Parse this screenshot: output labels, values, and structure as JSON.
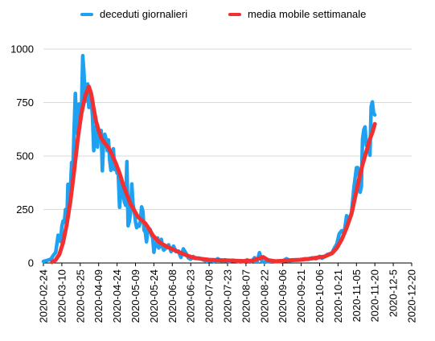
{
  "colors": {
    "daily": "#1ea1f1",
    "mavg": "#f23030",
    "grid": "#d9d9d9",
    "axis": "#000000"
  },
  "chart_data": {
    "type": "line",
    "legend_position": "top",
    "grid": true,
    "xlabel": "",
    "ylabel": "",
    "ylim": [
      0,
      1000
    ],
    "yticks": [
      0,
      250,
      500,
      750,
      1000
    ],
    "x_range": [
      "2020-02-24",
      "2020-12-20"
    ],
    "xticks": [
      "2020-02-24",
      "2020-03-10",
      "2020-03-25",
      "2020-04-09",
      "2020-04-24",
      "2020-05-09",
      "2020-05-24",
      "2020-06-08",
      "2020-06-23",
      "2020-07-08",
      "2020-07-23",
      "2020-08-07",
      "2020-08-22",
      "2020-09-06",
      "2020-09-21",
      "2020-10-06",
      "2020-10-21",
      "2020-11-05",
      "2020-11-20",
      "2020-12-5",
      "2020-12-20"
    ],
    "series": [
      {
        "name": "deceduti giornalieri",
        "points": [
          [
            "2020-02-24",
            7
          ],
          [
            "2020-02-27",
            12
          ],
          [
            "2020-03-01",
            18
          ],
          [
            "2020-03-03",
            35
          ],
          [
            "2020-03-05",
            50
          ],
          [
            "2020-03-07",
            130
          ],
          [
            "2020-03-09",
            100
          ],
          [
            "2020-03-10",
            170
          ],
          [
            "2020-03-11",
            196
          ],
          [
            "2020-03-12",
            190
          ],
          [
            "2020-03-13",
            250
          ],
          [
            "2020-03-14",
            175
          ],
          [
            "2020-03-15",
            368
          ],
          [
            "2020-03-16",
            350
          ],
          [
            "2020-03-17",
            345
          ],
          [
            "2020-03-18",
            470
          ],
          [
            "2020-03-19",
            430
          ],
          [
            "2020-03-20",
            627
          ],
          [
            "2020-03-21",
            793
          ],
          [
            "2020-03-22",
            651
          ],
          [
            "2020-03-23",
            601
          ],
          [
            "2020-03-24",
            743
          ],
          [
            "2020-03-25",
            683
          ],
          [
            "2020-03-26",
            712
          ],
          [
            "2020-03-27",
            969
          ],
          [
            "2020-03-28",
            889
          ],
          [
            "2020-03-29",
            756
          ],
          [
            "2020-03-30",
            812
          ],
          [
            "2020-03-31",
            837
          ],
          [
            "2020-04-01",
            727
          ],
          [
            "2020-04-02",
            760
          ],
          [
            "2020-04-03",
            766
          ],
          [
            "2020-04-04",
            681
          ],
          [
            "2020-04-05",
            525
          ],
          [
            "2020-04-06",
            636
          ],
          [
            "2020-04-07",
            604
          ],
          [
            "2020-04-08",
            542
          ],
          [
            "2020-04-09",
            610
          ],
          [
            "2020-04-10",
            570
          ],
          [
            "2020-04-11",
            619
          ],
          [
            "2020-04-12",
            431
          ],
          [
            "2020-04-13",
            566
          ],
          [
            "2020-04-14",
            602
          ],
          [
            "2020-04-15",
            578
          ],
          [
            "2020-04-16",
            525
          ],
          [
            "2020-04-17",
            575
          ],
          [
            "2020-04-18",
            482
          ],
          [
            "2020-04-19",
            433
          ],
          [
            "2020-04-20",
            454
          ],
          [
            "2020-04-21",
            534
          ],
          [
            "2020-04-22",
            437
          ],
          [
            "2020-04-23",
            464
          ],
          [
            "2020-04-24",
            420
          ],
          [
            "2020-04-25",
            415
          ],
          [
            "2020-04-26",
            260
          ],
          [
            "2020-04-27",
            333
          ],
          [
            "2020-04-28",
            382
          ],
          [
            "2020-04-29",
            323
          ],
          [
            "2020-04-30",
            285
          ],
          [
            "2020-05-01",
            269
          ],
          [
            "2020-05-02",
            474
          ],
          [
            "2020-05-03",
            174
          ],
          [
            "2020-05-04",
            195
          ],
          [
            "2020-05-05",
            236
          ],
          [
            "2020-05-06",
            369
          ],
          [
            "2020-05-07",
            274
          ],
          [
            "2020-05-08",
            243
          ],
          [
            "2020-05-09",
            194
          ],
          [
            "2020-05-10",
            165
          ],
          [
            "2020-05-11",
            179
          ],
          [
            "2020-05-12",
            172
          ],
          [
            "2020-05-13",
            195
          ],
          [
            "2020-05-14",
            262
          ],
          [
            "2020-05-15",
            242
          ],
          [
            "2020-05-16",
            153
          ],
          [
            "2020-05-17",
            145
          ],
          [
            "2020-05-18",
            99
          ],
          [
            "2020-05-19",
            162
          ],
          [
            "2020-05-20",
            161
          ],
          [
            "2020-05-21",
            156
          ],
          [
            "2020-05-22",
            130
          ],
          [
            "2020-05-23",
            119
          ],
          [
            "2020-05-24",
            50
          ],
          [
            "2020-05-25",
            92
          ],
          [
            "2020-05-26",
            78
          ],
          [
            "2020-05-27",
            117
          ],
          [
            "2020-05-28",
            70
          ],
          [
            "2020-05-29",
            87
          ],
          [
            "2020-05-30",
            111
          ],
          [
            "2020-05-31",
            75
          ],
          [
            "2020-06-01",
            60
          ],
          [
            "2020-06-03",
            71
          ],
          [
            "2020-06-05",
            85
          ],
          [
            "2020-06-07",
            53
          ],
          [
            "2020-06-09",
            79
          ],
          [
            "2020-06-11",
            53
          ],
          [
            "2020-06-13",
            56
          ],
          [
            "2020-06-15",
            26
          ],
          [
            "2020-06-17",
            66
          ],
          [
            "2020-06-19",
            47
          ],
          [
            "2020-06-21",
            24
          ],
          [
            "2020-06-23",
            18
          ],
          [
            "2020-06-25",
            30
          ],
          [
            "2020-06-27",
            21
          ],
          [
            "2020-06-30",
            23
          ],
          [
            "2020-07-03",
            15
          ],
          [
            "2020-07-06",
            8
          ],
          [
            "2020-07-09",
            12
          ],
          [
            "2020-07-12",
            7
          ],
          [
            "2020-07-15",
            20
          ],
          [
            "2020-07-18",
            11
          ],
          [
            "2020-07-21",
            15
          ],
          [
            "2020-07-24",
            5
          ],
          [
            "2020-07-27",
            13
          ],
          [
            "2020-07-30",
            9
          ],
          [
            "2020-08-02",
            5
          ],
          [
            "2020-08-05",
            6
          ],
          [
            "2020-08-08",
            15
          ],
          [
            "2020-08-10",
            4
          ],
          [
            "2020-08-12",
            9
          ],
          [
            "2020-08-14",
            25
          ],
          [
            "2020-08-16",
            4
          ],
          [
            "2020-08-18",
            48
          ],
          [
            "2020-08-20",
            8
          ],
          [
            "2020-08-22",
            3
          ],
          [
            "2020-08-25",
            7
          ],
          [
            "2020-08-28",
            9
          ],
          [
            "2020-08-31",
            8
          ],
          [
            "2020-09-03",
            7
          ],
          [
            "2020-09-06",
            9
          ],
          [
            "2020-09-09",
            20
          ],
          [
            "2020-09-12",
            11
          ],
          [
            "2020-09-15",
            14
          ],
          [
            "2020-09-18",
            13
          ],
          [
            "2020-09-21",
            15
          ],
          [
            "2020-09-24",
            20
          ],
          [
            "2020-09-27",
            17
          ],
          [
            "2020-09-30",
            24
          ],
          [
            "2020-10-03",
            20
          ],
          [
            "2020-10-06",
            31
          ],
          [
            "2020-10-08",
            22
          ],
          [
            "2020-10-10",
            29
          ],
          [
            "2020-10-12",
            39
          ],
          [
            "2020-10-14",
            43
          ],
          [
            "2020-10-16",
            47
          ],
          [
            "2020-10-18",
            69
          ],
          [
            "2020-10-20",
            89
          ],
          [
            "2020-10-22",
            136
          ],
          [
            "2020-10-24",
            151
          ],
          [
            "2020-10-26",
            141
          ],
          [
            "2020-10-28",
            221
          ],
          [
            "2020-10-30",
            199
          ],
          [
            "2020-11-01",
            236
          ],
          [
            "2020-11-03",
            353
          ],
          [
            "2020-11-05",
            445
          ],
          [
            "2020-11-06",
            446
          ],
          [
            "2020-11-07",
            425
          ],
          [
            "2020-11-08",
            331
          ],
          [
            "2020-11-09",
            356
          ],
          [
            "2020-11-10",
            580
          ],
          [
            "2020-11-11",
            623
          ],
          [
            "2020-11-12",
            636
          ],
          [
            "2020-11-13",
            550
          ],
          [
            "2020-11-14",
            544
          ],
          [
            "2020-11-15",
            546
          ],
          [
            "2020-11-16",
            504
          ],
          [
            "2020-11-17",
            731
          ],
          [
            "2020-11-18",
            753
          ],
          [
            "2020-11-19",
            699
          ],
          [
            "2020-11-20",
            692
          ]
        ]
      },
      {
        "name": "media mobile settimanale",
        "points": [
          [
            "2020-03-02",
            4
          ],
          [
            "2020-03-05",
            15
          ],
          [
            "2020-03-08",
            40
          ],
          [
            "2020-03-11",
            95
          ],
          [
            "2020-03-14",
            180
          ],
          [
            "2020-03-17",
            290
          ],
          [
            "2020-03-20",
            430
          ],
          [
            "2020-03-23",
            580
          ],
          [
            "2020-03-26",
            700
          ],
          [
            "2020-03-29",
            780
          ],
          [
            "2020-04-01",
            825
          ],
          [
            "2020-04-03",
            790
          ],
          [
            "2020-04-05",
            720
          ],
          [
            "2020-04-07",
            660
          ],
          [
            "2020-04-09",
            620
          ],
          [
            "2020-04-11",
            585
          ],
          [
            "2020-04-14",
            560
          ],
          [
            "2020-04-17",
            540
          ],
          [
            "2020-04-20",
            505
          ],
          [
            "2020-04-23",
            465
          ],
          [
            "2020-04-26",
            420
          ],
          [
            "2020-04-29",
            365
          ],
          [
            "2020-05-02",
            320
          ],
          [
            "2020-05-05",
            275
          ],
          [
            "2020-05-08",
            245
          ],
          [
            "2020-05-11",
            215
          ],
          [
            "2020-05-14",
            200
          ],
          [
            "2020-05-17",
            185
          ],
          [
            "2020-05-20",
            160
          ],
          [
            "2020-05-23",
            130
          ],
          [
            "2020-05-26",
            110
          ],
          [
            "2020-05-29",
            95
          ],
          [
            "2020-06-01",
            85
          ],
          [
            "2020-06-05",
            72
          ],
          [
            "2020-06-09",
            62
          ],
          [
            "2020-06-13",
            52
          ],
          [
            "2020-06-17",
            42
          ],
          [
            "2020-06-21",
            33
          ],
          [
            "2020-06-25",
            25
          ],
          [
            "2020-07-01",
            20
          ],
          [
            "2020-07-08",
            15
          ],
          [
            "2020-07-15",
            13
          ],
          [
            "2020-07-22",
            12
          ],
          [
            "2020-07-29",
            10
          ],
          [
            "2020-08-05",
            9
          ],
          [
            "2020-08-12",
            11
          ],
          [
            "2020-08-18",
            22
          ],
          [
            "2020-08-21",
            28
          ],
          [
            "2020-08-25",
            13
          ],
          [
            "2020-08-31",
            8
          ],
          [
            "2020-09-06",
            10
          ],
          [
            "2020-09-13",
            13
          ],
          [
            "2020-09-20",
            15
          ],
          [
            "2020-09-27",
            19
          ],
          [
            "2020-10-04",
            25
          ],
          [
            "2020-10-10",
            30
          ],
          [
            "2020-10-16",
            45
          ],
          [
            "2020-10-20",
            70
          ],
          [
            "2020-10-24",
            110
          ],
          [
            "2020-10-28",
            165
          ],
          [
            "2020-11-01",
            230
          ],
          [
            "2020-11-04",
            310
          ],
          [
            "2020-11-07",
            390
          ],
          [
            "2020-11-10",
            460
          ],
          [
            "2020-11-13",
            520
          ],
          [
            "2020-11-16",
            580
          ],
          [
            "2020-11-18",
            610
          ],
          [
            "2020-11-20",
            650
          ]
        ]
      }
    ]
  }
}
